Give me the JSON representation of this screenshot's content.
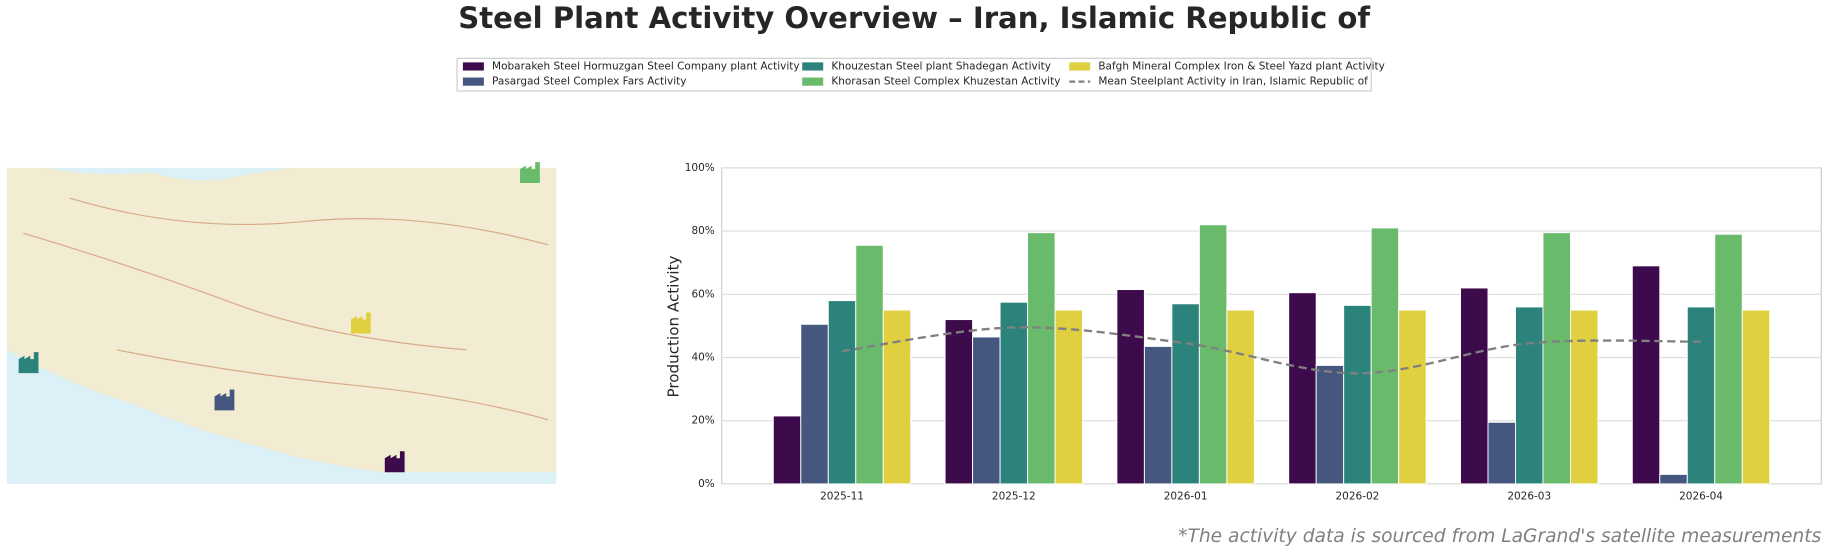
{
  "chart_data": {
    "type": "bar",
    "title": "Steel Plant Activity Overview – Iran, Islamic Republic of",
    "ylabel": "Production Activity",
    "footnote": "*The activity data is sourced from LaGrand's satellite measurements",
    "categories": [
      "2025-11",
      "2025-12",
      "2026-01",
      "2026-02",
      "2026-03",
      "2026-04"
    ],
    "series": [
      {
        "name": "Mobarakeh Steel Hormuzgan Steel Company plant Activity",
        "color": "#3d0b4b",
        "values": [
          21.5,
          52,
          61.5,
          60.5,
          62,
          69
        ]
      },
      {
        "name": "Pasargad Steel Complex Fars Activity",
        "color": "#45567f",
        "values": [
          50.5,
          46.5,
          43.5,
          37.5,
          19.5,
          3
        ]
      },
      {
        "name": "Khouzestan Steel plant Shadegan Activity",
        "color": "#2c837c",
        "values": [
          58,
          57.5,
          57,
          56.5,
          56,
          56
        ]
      },
      {
        "name": "Khorasan Steel Complex Khuzestan Activity",
        "color": "#6aba6c",
        "values": [
          75.5,
          79.5,
          82,
          81,
          79.5,
          79
        ]
      },
      {
        "name": "Bafgh Mineral Complex Iron & Steel Yazd plant Activity",
        "color": "#e0d03f",
        "values": [
          55,
          55,
          55,
          55,
          55,
          55
        ]
      },
      {
        "name": "Mean Steelplant Activity in Iran, Islamic Republic of",
        "color": "#808080",
        "type": "line",
        "line_style": "dashed",
        "values": [
          42,
          49.5,
          44.5,
          35,
          44.5,
          45
        ]
      }
    ],
    "ylim": [
      0,
      100
    ],
    "yticks": [
      {
        "value": 0,
        "label": "0%"
      },
      {
        "value": 20,
        "label": "20%"
      },
      {
        "value": 40,
        "label": "40%"
      },
      {
        "value": 60,
        "label": "60%"
      },
      {
        "value": 80,
        "label": "80%"
      },
      {
        "value": 100,
        "label": "100%"
      }
    ],
    "grid": true,
    "legend": "upper center"
  }
}
